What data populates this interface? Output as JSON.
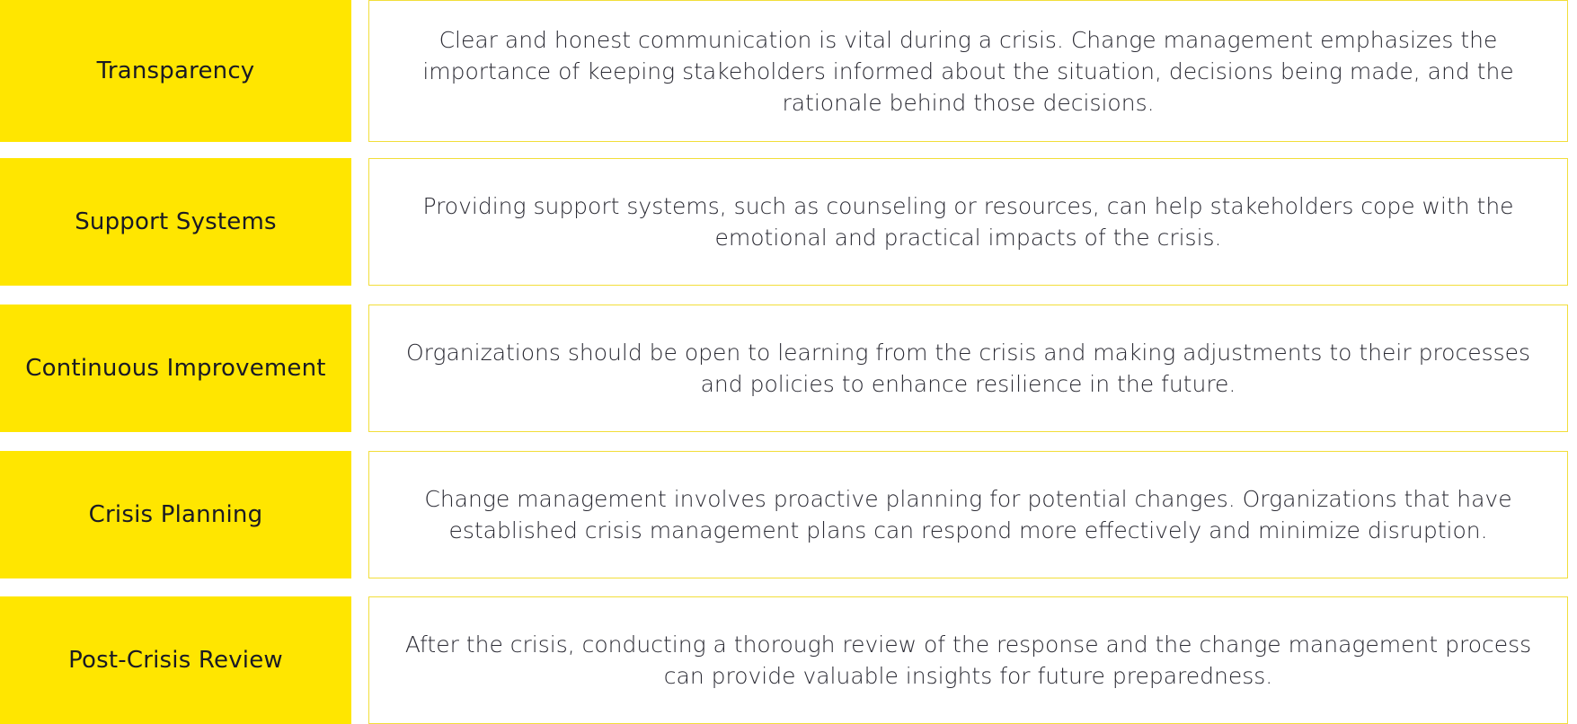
{
  "colors": {
    "accent_yellow": "#ffe600",
    "border_yellow": "#f2de3a",
    "text_dark": "#1a1a24"
  },
  "items": [
    {
      "label": "Transparency",
      "description": "Clear and honest communication is vital during a crisis. Change management emphasizes the importance of keeping stakeholders informed about the situation, decisions being made, and the rationale behind those decisions."
    },
    {
      "label": "Support Systems",
      "description": "Providing support systems, such as counseling or resources, can help stakeholders cope with the emotional and practical impacts of the crisis."
    },
    {
      "label": "Continuous Improvement",
      "description": "Organizations should be open to learning from the crisis and making adjustments to their processes and policies to enhance resilience in the future."
    },
    {
      "label": "Crisis Planning",
      "description": "Change management involves proactive planning for potential changes. Organizations that have established crisis management plans can respond more effectively and minimize disruption."
    },
    {
      "label": "Post-Crisis Review",
      "description": "After the crisis, conducting a thorough review of the response and the change management process can provide valuable insights for future preparedness."
    }
  ]
}
